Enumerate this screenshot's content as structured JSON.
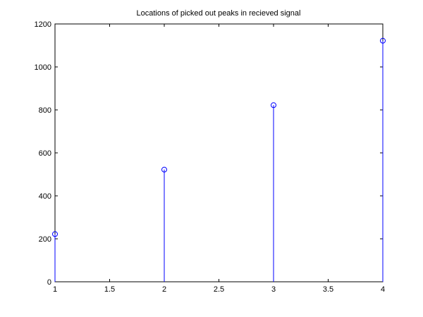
{
  "chart_data": {
    "type": "stem",
    "title": "Locations of picked out peaks in recieved signal",
    "xlabel": "",
    "ylabel": "",
    "x": [
      1,
      2,
      3,
      4
    ],
    "values": [
      222,
      522,
      822,
      1122
    ],
    "xlim": [
      1,
      4
    ],
    "ylim": [
      0,
      1200
    ],
    "xticks": [
      1,
      1.5,
      2,
      2.5,
      3,
      3.5,
      4
    ],
    "xtick_labels": [
      "1",
      "1.5",
      "2",
      "2.5",
      "3",
      "3.5",
      "4"
    ],
    "yticks": [
      0,
      200,
      400,
      600,
      800,
      1000,
      1200
    ],
    "ytick_labels": [
      "0",
      "200",
      "400",
      "600",
      "800",
      "1000",
      "1200"
    ],
    "grid": false,
    "legend": "none",
    "colors": {
      "series": "#0000ff",
      "axes": "#000000",
      "background": "#ffffff"
    }
  }
}
